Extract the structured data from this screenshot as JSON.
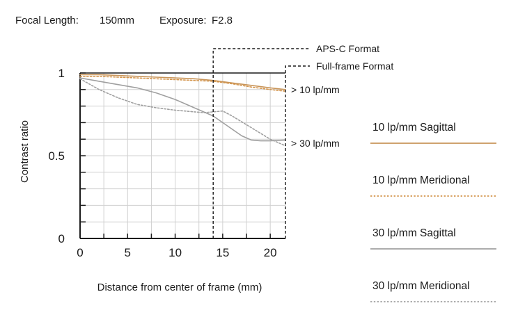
{
  "header": {
    "focal_label": "Focal Length:",
    "focal_value": "150mm",
    "exposure_label": "Exposure:",
    "exposure_value": "F2.8"
  },
  "chart_data": {
    "type": "line",
    "title": "",
    "xlabel": "Distance from center of frame (mm)",
    "ylabel": "Contrast ratio",
    "xlim": [
      0,
      21.6
    ],
    "ylim": [
      0,
      1
    ],
    "x_ticks": [
      0,
      5,
      10,
      15,
      20
    ],
    "y_ticks": [
      {
        "value": 0,
        "label": "0"
      },
      {
        "value": 0.5,
        "label": "0.5"
      },
      {
        "value": 1,
        "label": "1"
      }
    ],
    "grid": true,
    "series": [
      {
        "name": "10 lp/mm Sagittal",
        "color": "#c8955a",
        "dash": "solid",
        "x": [
          0,
          2,
          4,
          6,
          8,
          10,
          12,
          14,
          16,
          18,
          20,
          21.6
        ],
        "y": [
          0.99,
          0.99,
          0.985,
          0.98,
          0.975,
          0.97,
          0.965,
          0.955,
          0.94,
          0.925,
          0.91,
          0.9
        ]
      },
      {
        "name": "10 lp/mm Meridional",
        "color": "#d4964e",
        "dash": "dotted",
        "x": [
          0,
          2,
          4,
          6,
          8,
          10,
          12,
          14,
          16,
          18,
          20,
          21.6
        ],
        "y": [
          0.98,
          0.98,
          0.975,
          0.97,
          0.965,
          0.96,
          0.955,
          0.95,
          0.935,
          0.915,
          0.9,
          0.89
        ]
      },
      {
        "name": "30 lp/mm Sagittal",
        "color": "#a0a0a0",
        "dash": "solid",
        "x": [
          0,
          2,
          4,
          6,
          8,
          10,
          12,
          14,
          15,
          16,
          17,
          18,
          19,
          20,
          21.6
        ],
        "y": [
          0.97,
          0.95,
          0.93,
          0.91,
          0.88,
          0.84,
          0.79,
          0.74,
          0.7,
          0.66,
          0.62,
          0.595,
          0.59,
          0.59,
          0.595
        ]
      },
      {
        "name": "30 lp/mm Meridional",
        "color": "#a0a0a0",
        "dash": "dotted",
        "x": [
          0,
          2,
          4,
          6,
          8,
          10,
          12,
          13,
          14,
          15,
          16,
          18,
          20,
          21.6
        ],
        "y": [
          0.965,
          0.9,
          0.85,
          0.81,
          0.79,
          0.775,
          0.765,
          0.76,
          0.765,
          0.77,
          0.74,
          0.67,
          0.6,
          0.56
        ]
      }
    ],
    "annotations": [
      {
        "text": "APS-C Format",
        "x": 14,
        "dash": "dashed"
      },
      {
        "text": "Full-frame Format",
        "x": 21.6,
        "dash": "dashed"
      },
      {
        "text": "> 10 lp/mm",
        "y": 0.9
      },
      {
        "text": "> 30 lp/mm",
        "y": 0.575
      }
    ],
    "legend": {
      "placement": "right",
      "entries": [
        {
          "label": "10 lp/mm Sagittal",
          "color": "#c8955a",
          "dash": "solid"
        },
        {
          "label": "10 lp/mm Meridional",
          "color": "#d4964e",
          "dash": "dotted"
        },
        {
          "label": "30 lp/mm Sagittal",
          "color": "#a0a0a0",
          "dash": "solid"
        },
        {
          "label": "30 lp/mm Meridional",
          "color": "#a0a0a0",
          "dash": "dotted"
        }
      ]
    }
  }
}
